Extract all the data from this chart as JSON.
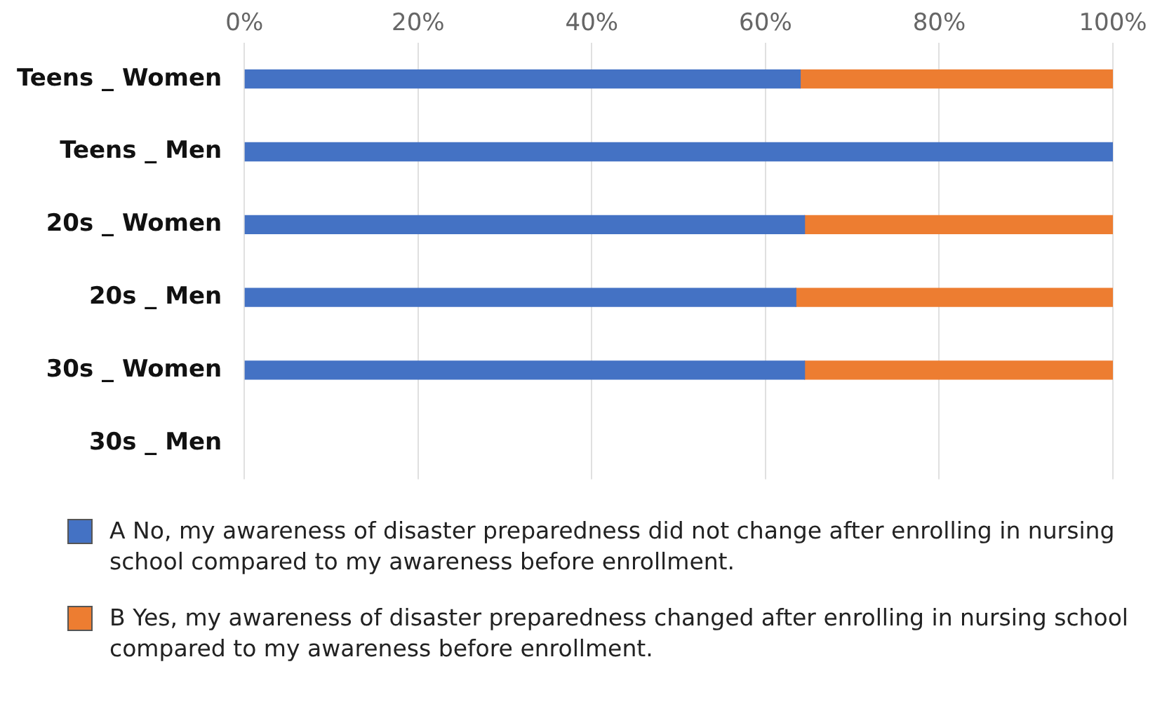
{
  "chart_data": {
    "type": "bar",
    "orientation": "horizontal",
    "stacked": true,
    "categories": [
      "Teens _ Women",
      "Teens _ Men",
      "20s _ Women",
      "20s _ Men",
      "30s _ Women",
      "30s _ Men"
    ],
    "series": [
      {
        "name": "A No, my awareness of disaster preparedness did not change after enrolling in nursing school compared to my awareness before enrollment.",
        "color": "#4472c4",
        "values": [
          64,
          100,
          64.5,
          63.5,
          64.5,
          null
        ]
      },
      {
        "name": "B Yes, my awareness of disaster preparedness changed after enrolling in nursing school compared to my awareness before enrollment.",
        "color": "#ed7d31",
        "values": [
          36,
          0,
          35.5,
          36.5,
          35.5,
          null
        ]
      }
    ],
    "xlim": [
      0,
      100
    ],
    "xticks": [
      {
        "value": 0,
        "label": "0%"
      },
      {
        "value": 20,
        "label": "20%"
      },
      {
        "value": 40,
        "label": "40%"
      },
      {
        "value": 60,
        "label": "60%"
      },
      {
        "value": 80,
        "label": "80%"
      },
      {
        "value": 100,
        "label": "100%"
      }
    ],
    "grid": "x",
    "legend": "bottom"
  }
}
